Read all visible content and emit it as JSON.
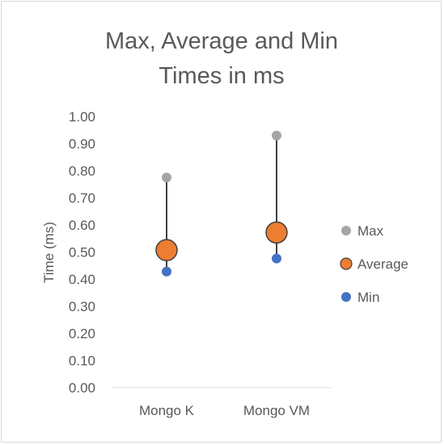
{
  "chart_data": {
    "type": "scatter",
    "title": "Max, Average and Min Times in ms",
    "title_lines": [
      "Max, Average and Min",
      "Times in ms"
    ],
    "xlabel": "",
    "ylabel": "Time (ms)",
    "categories": [
      "Mongo K",
      "Mongo VM"
    ],
    "ylim": [
      0,
      1
    ],
    "yticks": [
      "0.00",
      "0.10",
      "0.20",
      "0.30",
      "0.40",
      "0.50",
      "0.60",
      "0.70",
      "0.80",
      "0.90",
      "1.00"
    ],
    "grid": false,
    "legend_position": "right",
    "series": [
      {
        "name": "Max",
        "values": [
          0.775,
          0.93
        ],
        "color": "#a5a5a5"
      },
      {
        "name": "Average",
        "values": [
          0.507,
          0.572
        ],
        "color": "#ed7d31"
      },
      {
        "name": "Min",
        "values": [
          0.428,
          0.476
        ],
        "color": "#4472c4"
      }
    ],
    "range_line_color": "#404040"
  }
}
